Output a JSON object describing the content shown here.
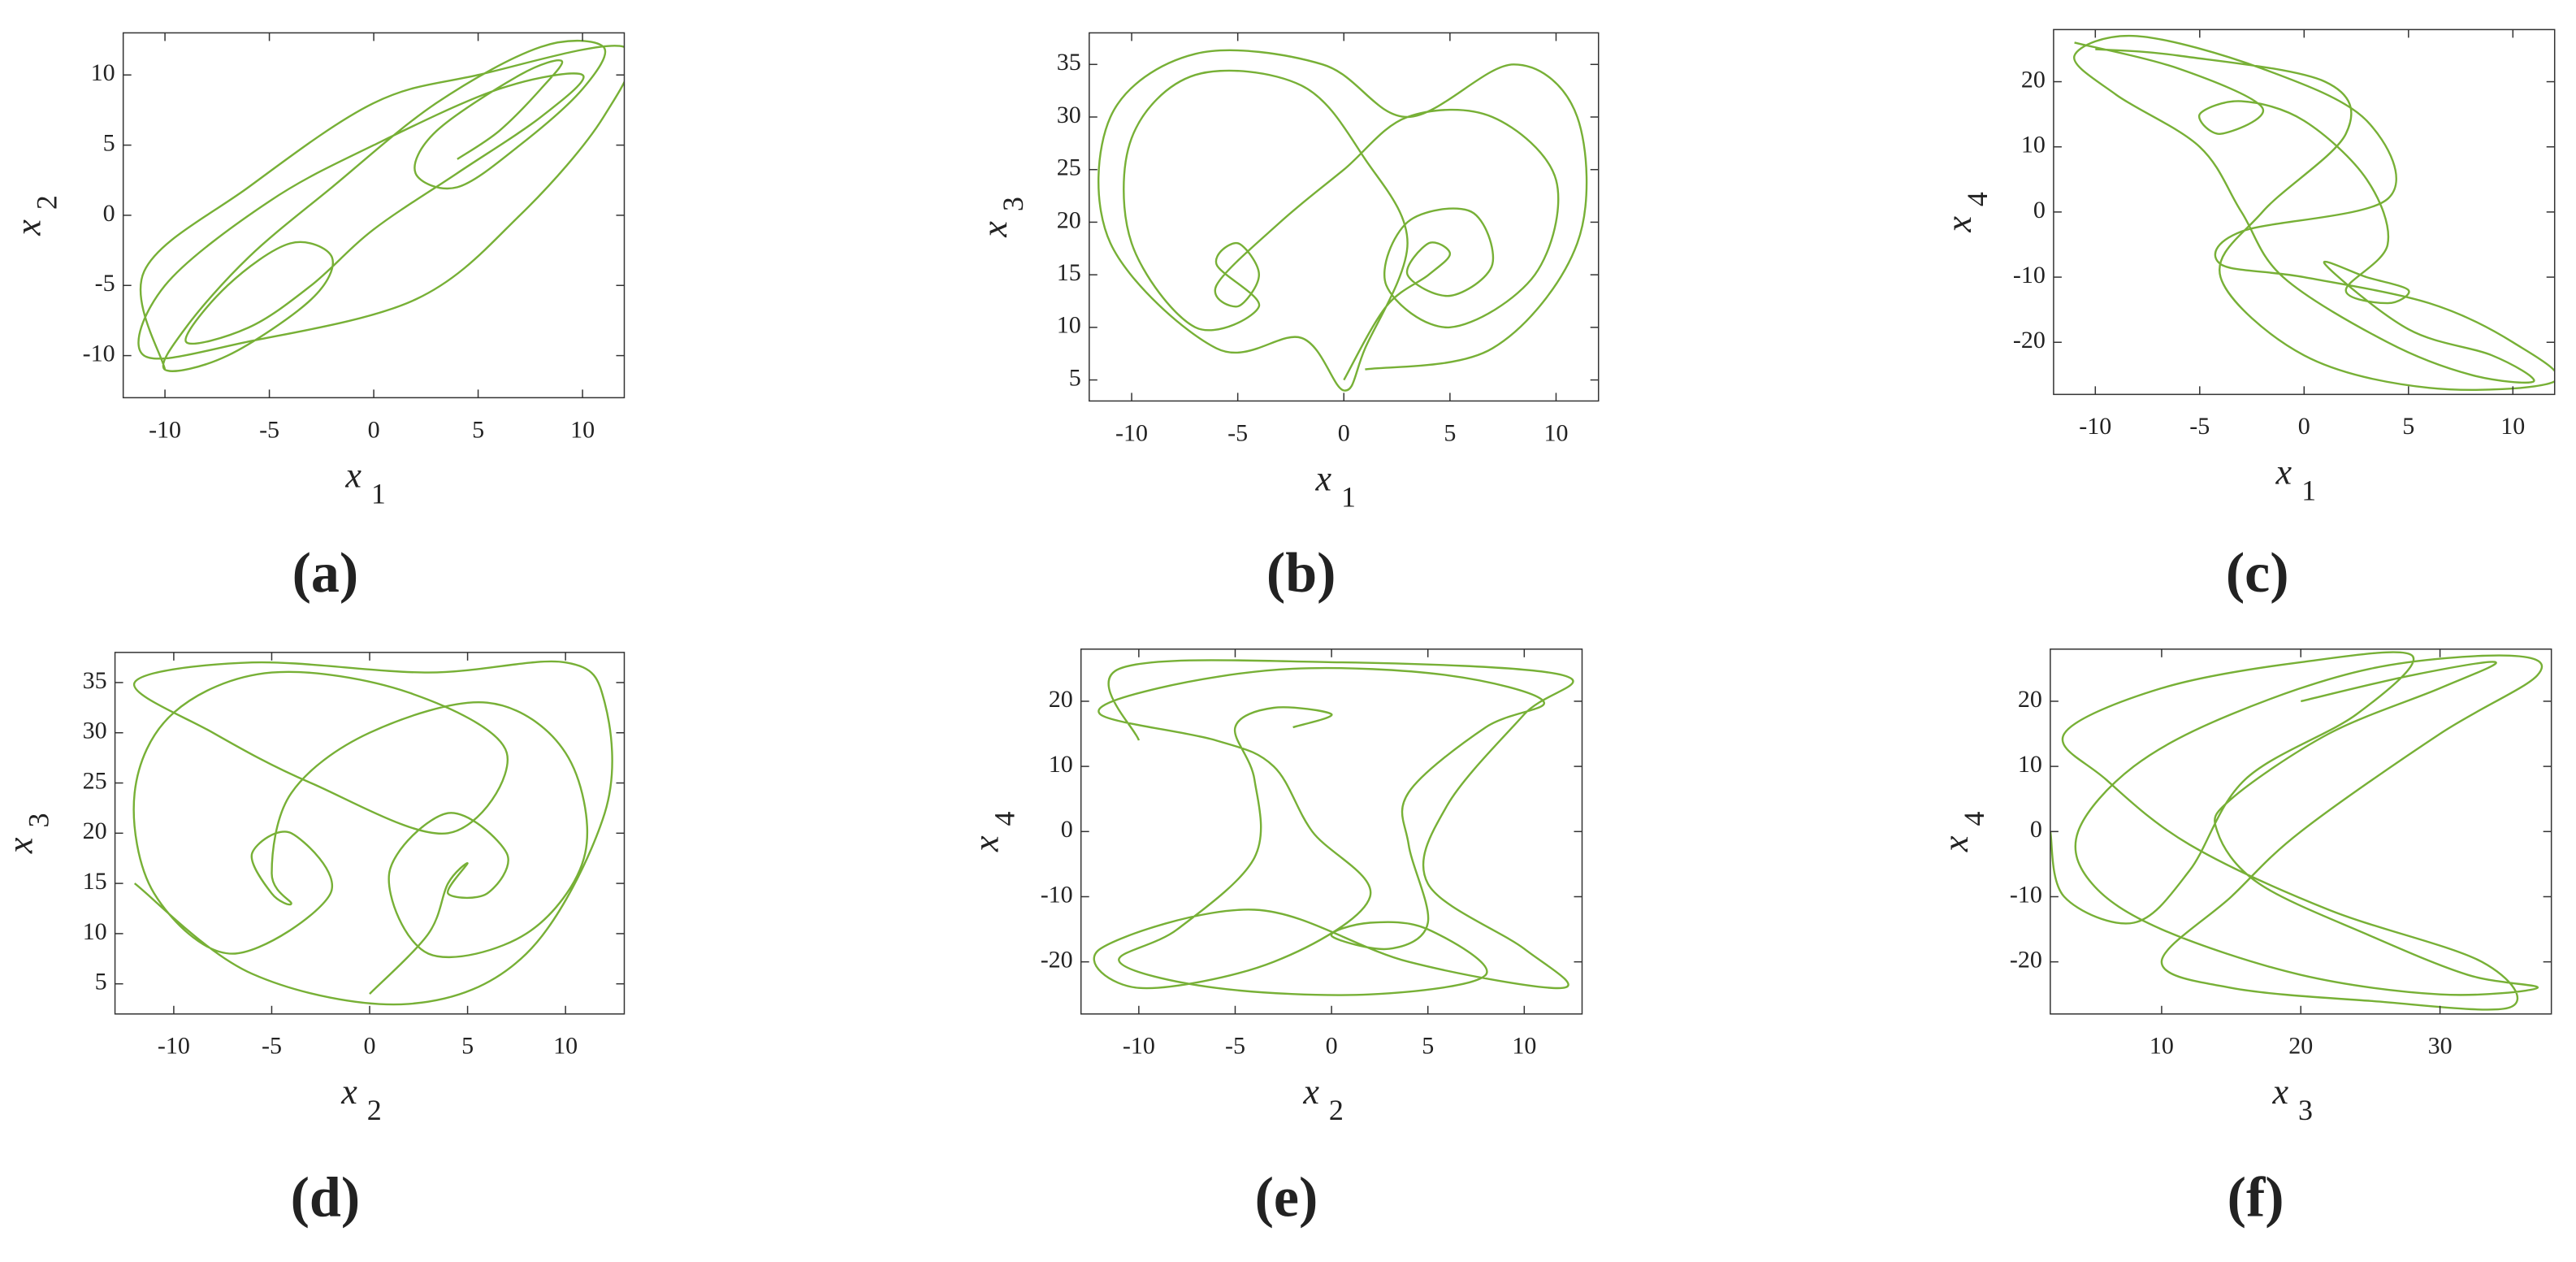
{
  "chart_data": [
    {
      "type": "line",
      "caption": "(a)",
      "xlabel": [
        "x",
        "1"
      ],
      "ylabel": [
        "x",
        "2"
      ],
      "color": "#77b036",
      "xlim": [
        -12,
        12
      ],
      "ylim": [
        -13,
        13
      ],
      "xticks": [
        -10,
        -5,
        0,
        5,
        10
      ],
      "yticks": [
        -10,
        -5,
        0,
        5,
        10
      ],
      "x": [
        4,
        6,
        8,
        9,
        7,
        3,
        2,
        4,
        7,
        10,
        11,
        8,
        3,
        -2,
        -6,
        -9,
        -10,
        -7,
        -3,
        -2,
        -4,
        -7,
        -9,
        -6,
        -3,
        0,
        4,
        8,
        10,
        6,
        0,
        -5,
        -10,
        -11,
        -6,
        2,
        7,
        11,
        12,
        5,
        0,
        -6,
        -11,
        -10
      ],
      "values": [
        4,
        6,
        9,
        11,
        10,
        6,
        3,
        2,
        5,
        9,
        12,
        12,
        8,
        2,
        -3,
        -8,
        -11,
        -10,
        -6,
        -3,
        -2,
        -5,
        -9,
        -8,
        -5,
        -1,
        3,
        7,
        10,
        9,
        5,
        1,
        -5,
        -10,
        -9,
        -6,
        0,
        7,
        12,
        10,
        8,
        2,
        -4,
        -11
      ]
    },
    {
      "type": "line",
      "caption": "(b)",
      "xlabel": [
        "x",
        "1"
      ],
      "ylabel": [
        "x",
        "3"
      ],
      "color": "#77b036",
      "xlim": [
        -12,
        12
      ],
      "ylim": [
        3,
        38
      ],
      "xticks": [
        -10,
        -5,
        0,
        5,
        10
      ],
      "yticks": [
        5,
        10,
        15,
        20,
        25,
        30,
        35
      ],
      "x": [
        0,
        2,
        4,
        5,
        4,
        3,
        5,
        7,
        6,
        3,
        2,
        5,
        9,
        10,
        7,
        3,
        0,
        -3,
        -6,
        -5,
        -4,
        -5,
        -6,
        -4,
        -7,
        -10,
        -10,
        -7,
        -2,
        1,
        3,
        1,
        0,
        -2,
        -6,
        -11,
        -11,
        -7,
        -1,
        3,
        8,
        11,
        11,
        7,
        1
      ],
      "values": [
        5,
        12,
        15,
        17,
        18,
        15,
        13,
        16,
        21,
        20,
        14,
        10,
        15,
        24,
        30,
        30,
        25,
        20,
        14,
        12,
        15,
        18,
        16,
        12,
        10,
        18,
        28,
        34,
        33,
        26,
        18,
        8,
        4,
        9,
        8,
        18,
        30,
        36,
        35,
        30,
        35,
        30,
        18,
        8,
        6
      ]
    },
    {
      "type": "line",
      "caption": "(c)",
      "xlabel": [
        "x",
        "1"
      ],
      "ylabel": [
        "x",
        "4"
      ],
      "color": "#77b036",
      "xlim": [
        -12,
        12
      ],
      "ylim": [
        -28,
        28
      ],
      "xticks": [
        -10,
        -5,
        0,
        5,
        10
      ],
      "yticks": [
        -20,
        -10,
        0,
        10,
        20
      ],
      "x": [
        -11,
        -6,
        -2,
        -4,
        -5,
        -3,
        0,
        3,
        4,
        2,
        4,
        5,
        3,
        1,
        5,
        9,
        11,
        8,
        4,
        -1,
        -3,
        -5,
        -9,
        -11,
        -8,
        -2,
        3,
        4,
        -3,
        -4,
        0,
        6,
        10,
        12,
        6,
        0,
        -4,
        -2,
        2,
        1,
        -6,
        -10
      ],
      "values": [
        26,
        22,
        16,
        12,
        15,
        17,
        14,
        5,
        -5,
        -12,
        -14,
        -12,
        -10,
        -8,
        -18,
        -22,
        -26,
        -25,
        -20,
        -10,
        0,
        10,
        18,
        24,
        27,
        22,
        14,
        2,
        -3,
        -8,
        -10,
        -14,
        -20,
        -26,
        -27,
        -22,
        -10,
        0,
        12,
        20,
        24,
        25
      ]
    },
    {
      "type": "line",
      "caption": "(d)",
      "xlabel": [
        "x",
        "2"
      ],
      "ylabel": [
        "x",
        "3"
      ],
      "color": "#77b036",
      "xlim": [
        -13,
        13
      ],
      "ylim": [
        2,
        38
      ],
      "xticks": [
        -10,
        -5,
        0,
        5,
        10
      ],
      "yticks": [
        5,
        10,
        15,
        20,
        25,
        30,
        35
      ],
      "x": [
        0,
        3,
        4,
        5,
        4,
        6,
        7,
        4,
        1,
        3,
        8,
        11,
        10,
        6,
        0,
        -4,
        -5,
        -4,
        -5,
        -6,
        -4,
        -2,
        -7,
        -11,
        -12,
        -10,
        -5,
        2,
        7,
        4,
        -3,
        -8,
        -12,
        -6,
        3,
        10,
        12,
        12,
        8,
        2,
        -6,
        -12
      ],
      "values": [
        4,
        10,
        15,
        17,
        14,
        14,
        18,
        22,
        16,
        8,
        10,
        18,
        28,
        33,
        30,
        24,
        16,
        13,
        14,
        18,
        20,
        14,
        8,
        14,
        24,
        32,
        36,
        34,
        28,
        20,
        25,
        30,
        35,
        37,
        36,
        37,
        33,
        22,
        8,
        3,
        6,
        15
      ]
    },
    {
      "type": "line",
      "caption": "(e)",
      "xlabel": [
        "x",
        "2"
      ],
      "ylabel": [
        "x",
        "4"
      ],
      "color": "#77b036",
      "xlim": [
        -13,
        13
      ],
      "ylim": [
        -28,
        28
      ],
      "xticks": [
        -10,
        -5,
        0,
        5,
        10
      ],
      "yticks": [
        -20,
        -10,
        0,
        10,
        20
      ],
      "x": [
        -2,
        0,
        -3,
        -5,
        -4,
        -4,
        -8,
        -11,
        -6,
        2,
        8,
        5,
        2,
        0,
        3,
        5,
        4,
        4,
        8,
        11,
        6,
        -2,
        -9,
        -12,
        -6,
        -3,
        -1,
        2,
        -3,
        -10,
        -12,
        -4,
        4,
        12,
        10,
        5,
        6,
        10,
        12,
        0,
        -11,
        -10
      ],
      "values": [
        16,
        18,
        19,
        16,
        8,
        -4,
        -15,
        -20,
        -24,
        -25,
        -22,
        -15,
        -14,
        -16,
        -18,
        -14,
        -2,
        6,
        16,
        20,
        24,
        25,
        22,
        18,
        14,
        10,
        0,
        -10,
        -20,
        -24,
        -18,
        -12,
        -20,
        -24,
        -18,
        -8,
        4,
        18,
        24,
        26,
        25,
        14
      ]
    },
    {
      "type": "line",
      "caption": "(f)",
      "xlabel": [
        "x",
        "3"
      ],
      "ylabel": [
        "x",
        "4"
      ],
      "color": "#77b036",
      "xlim": [
        2,
        38
      ],
      "ylim": [
        -28,
        28
      ],
      "xticks": [
        10,
        20,
        30
      ],
      "yticks": [
        -20,
        -10,
        0,
        10,
        20
      ],
      "x": [
        20,
        28,
        34,
        30,
        22,
        15,
        14,
        17,
        25,
        32,
        37,
        30,
        20,
        10,
        5,
        4,
        8,
        15,
        25,
        35,
        37,
        30,
        20,
        15,
        10,
        15,
        25,
        35,
        33,
        22,
        12,
        6,
        3,
        10,
        20,
        28,
        24,
        16,
        12,
        8,
        3,
        2
      ],
      "values": [
        20,
        24,
        26,
        22,
        15,
        5,
        0,
        -8,
        -16,
        -22,
        -24,
        -25,
        -22,
        -15,
        -8,
        0,
        10,
        18,
        25,
        27,
        24,
        15,
        0,
        -10,
        -20,
        -24,
        -26,
        -27,
        -20,
        -12,
        -2,
        8,
        15,
        22,
        26,
        27,
        18,
        8,
        -6,
        -14,
        -10,
        0
      ]
    }
  ]
}
